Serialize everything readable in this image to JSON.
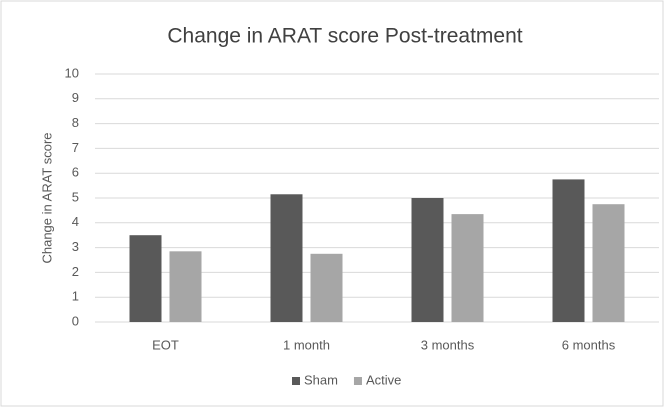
{
  "chart_data": {
    "type": "bar",
    "title": "Change in ARAT score Post-treatment",
    "y_label": "Change in ARAT score",
    "categories": [
      "EOT",
      "1 month",
      "3 months",
      "6 months"
    ],
    "series": [
      {
        "name": "Sham",
        "color": "#595959",
        "values": [
          3.5,
          5.15,
          5.0,
          5.75
        ]
      },
      {
        "name": "Active",
        "color": "#a6a6a6",
        "values": [
          2.85,
          2.75,
          4.35,
          4.75
        ]
      }
    ],
    "ylim": [
      0,
      10
    ],
    "yticks": [
      0,
      1,
      2,
      3,
      4,
      5,
      6,
      7,
      8,
      9,
      10
    ],
    "grid": true,
    "legend": "bottom"
  }
}
